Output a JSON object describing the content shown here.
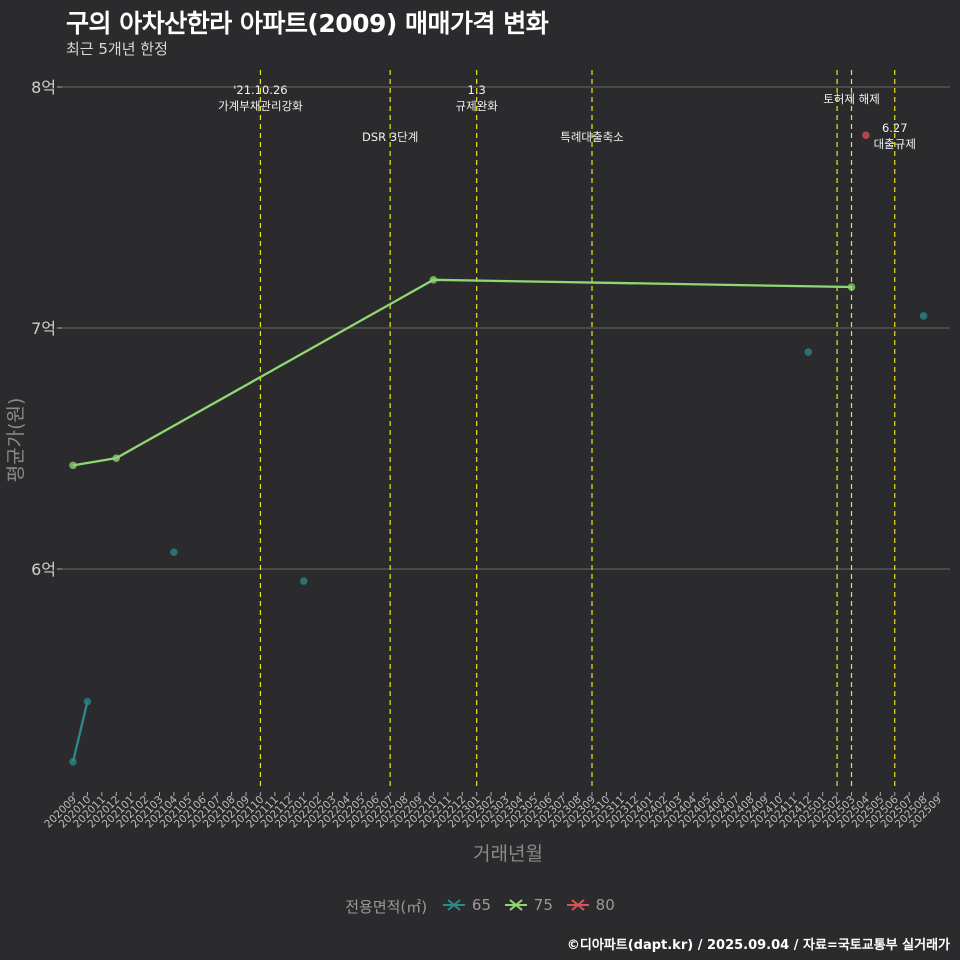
{
  "header": {
    "title": "구의 아차산한라 아파트(2009) 매매가격 변화",
    "subtitle": "최근 5개년 한정"
  },
  "footer": {
    "credit": "©디아파트(dapt.kr) / 2025.09.04 / 자료=국토교통부 실거래가"
  },
  "legend": {
    "title": "전용면적(㎡)",
    "items": [
      {
        "label": "65",
        "color": "#2a8a8c"
      },
      {
        "label": "75",
        "color": "#8fd872"
      },
      {
        "label": "80",
        "color": "#d9545a"
      }
    ]
  },
  "chart_data": {
    "type": "line",
    "title": "구의 아차산한라 아파트(2009) 매매가격 변화",
    "xlabel": "거래년월",
    "ylabel": "평균가(원)",
    "ylim": [
      5.1,
      8.08
    ],
    "yticks": [
      {
        "value": 6,
        "label": "6억"
      },
      {
        "value": 7,
        "label": "7억"
      },
      {
        "value": 8,
        "label": "8억"
      }
    ],
    "categories": [
      "202009",
      "202010",
      "202011",
      "202012",
      "202101",
      "202102",
      "202103",
      "202104",
      "202105",
      "202106",
      "202107",
      "202108",
      "202109",
      "202110",
      "202111",
      "202112",
      "202201",
      "202202",
      "202203",
      "202204",
      "202205",
      "202206",
      "202207",
      "202208",
      "202209",
      "202210",
      "202211",
      "202212",
      "202301",
      "202302",
      "202303",
      "202304",
      "202305",
      "202306",
      "202307",
      "202308",
      "202309",
      "202310",
      "202311",
      "202312",
      "202401",
      "202402",
      "202403",
      "202404",
      "202405",
      "202406",
      "202407",
      "202408",
      "202409",
      "202410",
      "202411",
      "202412",
      "202501",
      "202502",
      "202503",
      "202504",
      "202505",
      "202506",
      "202507",
      "202508",
      "202509"
    ],
    "series": [
      {
        "name": "65",
        "color": "#2a8a8c",
        "points": [
          {
            "x": "202009",
            "y": 5.2,
            "connected": true
          },
          {
            "x": "202010",
            "y": 5.45,
            "connected": true
          },
          {
            "x": "202104",
            "y": 6.07,
            "connected": false
          },
          {
            "x": "202201",
            "y": 5.95,
            "connected": false
          },
          {
            "x": "202412",
            "y": 6.9,
            "connected": false
          },
          {
            "x": "202508",
            "y": 7.05,
            "connected": false
          }
        ]
      },
      {
        "name": "75",
        "color": "#8fd872",
        "points": [
          {
            "x": "202009",
            "y": 6.43,
            "connected": true
          },
          {
            "x": "202012",
            "y": 6.46,
            "connected": true
          },
          {
            "x": "202210",
            "y": 7.2,
            "connected": true
          },
          {
            "x": "202503",
            "y": 7.17,
            "connected": true
          }
        ]
      },
      {
        "name": "80",
        "color": "#d9545a",
        "points": [
          {
            "x": "202504",
            "y": 7.8,
            "connected": false
          }
        ]
      }
    ],
    "events": [
      {
        "x": 13.0,
        "lines": [
          "'21.10.26",
          "가계부채관리강화"
        ],
        "row": "top"
      },
      {
        "x": 22.0,
        "lines": [
          "DSR 3단계"
        ],
        "row": "bottom"
      },
      {
        "x": 28.0,
        "lines": [
          "1.3",
          "규제완화"
        ],
        "row": "top"
      },
      {
        "x": 36.0,
        "lines": [
          "특례대출축소"
        ],
        "row": "bottom"
      },
      {
        "x": 53.0,
        "lines": [],
        "row": "none"
      },
      {
        "x": 54.0,
        "lines": [
          "토허제 해제"
        ],
        "row": "single"
      },
      {
        "x": 57.0,
        "lines": [
          "6.27",
          "대출규제"
        ],
        "row": "right"
      }
    ]
  }
}
